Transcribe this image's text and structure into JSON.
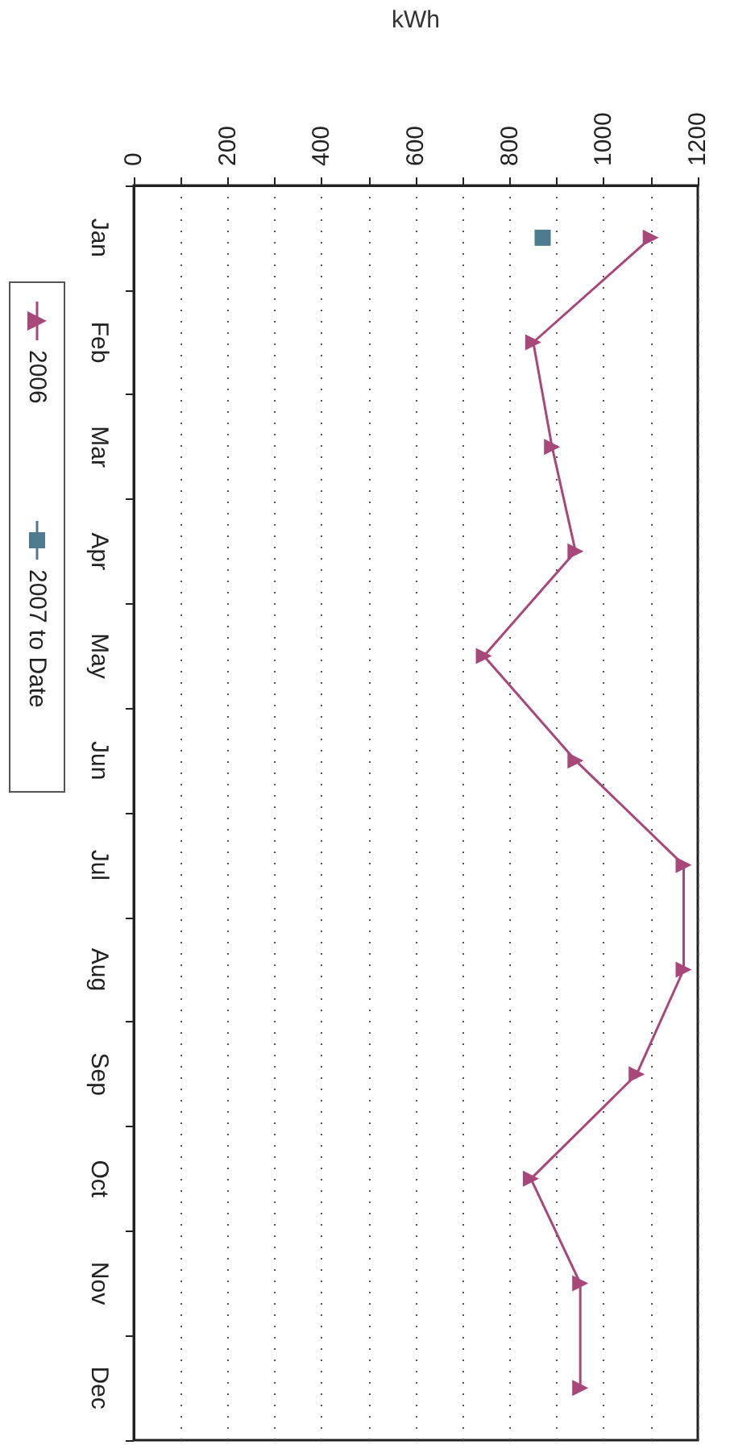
{
  "chart_data": {
    "type": "line",
    "orientation": "horizontal",
    "xlabel": "kWh",
    "categories": [
      "Jan",
      "Feb",
      "Mar",
      "Apr",
      "May",
      "Jun",
      "Jul",
      "Aug",
      "Sep",
      "Oct",
      "Nov",
      "Dec"
    ],
    "series": [
      {
        "name": "2006",
        "color": "#a8477a",
        "marker": "triangle",
        "values": [
          1100,
          850,
          890,
          940,
          745,
          940,
          1170,
          1170,
          1070,
          845,
          950,
          950
        ]
      },
      {
        "name": "2007 to Date",
        "color": "#4d7a8c",
        "marker": "square",
        "values": [
          870,
          null,
          null,
          null,
          null,
          null,
          null,
          null,
          null,
          null,
          null,
          null
        ]
      }
    ],
    "xlim": [
      0,
      1200
    ],
    "xticks": [
      0,
      {
        "value": 100,
        "label": null
      },
      200,
      {
        "value": 300,
        "label": null
      },
      400,
      {
        "value": 500,
        "label": null
      },
      600,
      {
        "value": 700,
        "label": null
      },
      800,
      {
        "value": 900,
        "label": null
      },
      1000,
      {
        "value": 1100,
        "label": null
      },
      1200
    ],
    "grid": "x",
    "legend": "left"
  }
}
